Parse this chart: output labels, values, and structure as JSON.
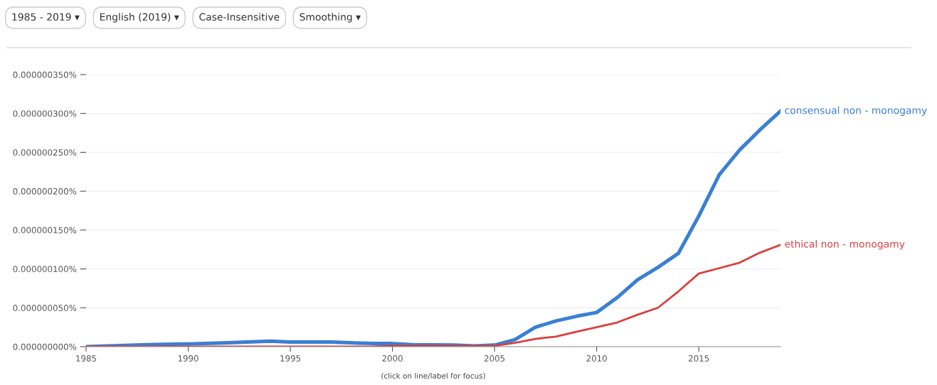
{
  "chart_data": {
    "type": "line",
    "annotations": [
      "1985 - 2019 ▾",
      "English (2019) ▾",
      "Case-Insensitive",
      "Smoothing ▾",
      "(click on line/label for focus)"
    ],
    "x": [
      1985,
      1988,
      1990,
      1992,
      1994,
      1995,
      1997,
      1999,
      2000,
      2001,
      2003,
      2004,
      2005,
      2006,
      2007,
      2008,
      2009,
      2010,
      2011,
      2012,
      2013,
      2014,
      2015,
      2016,
      2017,
      2018,
      2019
    ],
    "series": [
      {
        "name": "consensual non - monogamy",
        "color": "#3a7fd5",
        "values": [
          0,
          2.5e-09,
          3.5e-09,
          5e-09,
          7e-09,
          6e-09,
          6e-09,
          4e-09,
          4e-09,
          2.5e-09,
          2e-09,
          1e-09,
          2e-09,
          9e-09,
          2.5e-08,
          3.3e-08,
          3.9e-08,
          4.4e-08,
          6.3e-08,
          8.6e-08,
          1.02e-07,
          1.2e-07,
          1.68e-07,
          2.21e-07,
          2.53e-07,
          2.79e-07,
          3.03e-07
        ]
      },
      {
        "name": "ethical non - monogamy",
        "color": "#d9413e",
        "values": [
          0,
          0,
          0,
          0,
          0,
          0,
          0,
          0,
          1e-09,
          1e-09,
          1e-09,
          1e-09,
          1e-09,
          5e-09,
          1e-08,
          1.3e-08,
          1.9e-08,
          2.5e-08,
          3.1e-08,
          4.1e-08,
          5e-08,
          7.1e-08,
          9.4e-08,
          1.01e-07,
          1.08e-07,
          1.21e-07,
          1.31e-07
        ]
      }
    ],
    "xlim": [
      1985,
      2019
    ],
    "xticks": [
      1985,
      1990,
      1995,
      2000,
      2005,
      2010,
      2015
    ],
    "ylim": [
      0,
      3.5e-07
    ],
    "yticks": [
      {
        "value": 0,
        "label": "0.000000000%"
      },
      {
        "value": 5e-08,
        "label": "0.000000050%"
      },
      {
        "value": 1e-07,
        "label": "0.000000100%"
      },
      {
        "value": 1.5e-07,
        "label": "0.000000150%"
      },
      {
        "value": 2e-07,
        "label": "0.000000200%"
      },
      {
        "value": 2.5e-07,
        "label": "0.000000250%"
      },
      {
        "value": 3e-07,
        "label": "0.000000300%"
      },
      {
        "value": 3.5e-07,
        "label": "0.000000350%"
      }
    ],
    "grid": "y",
    "legend": false,
    "marker": "none",
    "line_style": "solid"
  }
}
